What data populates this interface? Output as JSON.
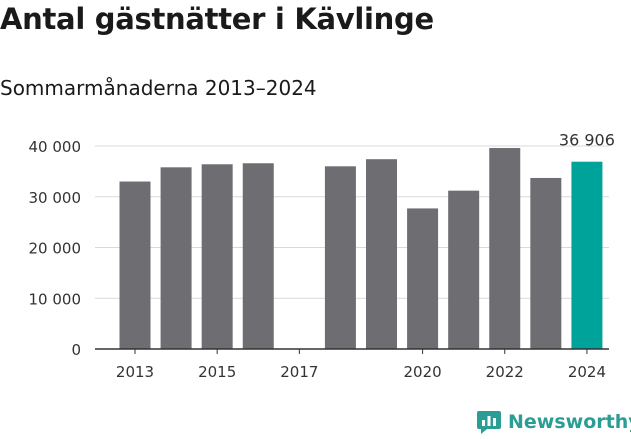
{
  "title": "Antal gästnätter i Kävlinge",
  "subtitle": "Sommarmånaderna 2013–2024",
  "brand": {
    "name": "Newsworthy",
    "icon": "newsworthy-chart-logo-icon"
  },
  "colors": {
    "bar": "#6e6d72",
    "highlight": "#00a399",
    "axis": "#333333",
    "grid": "#d9d9d9",
    "text": "#333333",
    "brand": "#2a9d94"
  },
  "chart_data": {
    "type": "bar",
    "title": "Antal gästnätter i Kävlinge",
    "subtitle": "Sommarmånaderna 2013–2024",
    "xlabel": "",
    "ylabel": "",
    "categories": [
      "2013",
      "2014",
      "2015",
      "2016",
      "2017",
      "2018",
      "2019",
      "2020",
      "2021",
      "2022",
      "2023",
      "2024"
    ],
    "values": [
      33000,
      35800,
      36400,
      36600,
      null,
      36000,
      37400,
      27700,
      31200,
      39600,
      33700,
      36906
    ],
    "highlight_index": 11,
    "data_labels": [
      {
        "index": 11,
        "text": "36 906"
      }
    ],
    "x_tick_labels": [
      "2013",
      "2015",
      "2017",
      "2020",
      "2022",
      "2024"
    ],
    "y_tick_labels": [
      "0",
      "10 000",
      "20 000",
      "30 000",
      "40 000"
    ],
    "y_ticks": [
      0,
      10000,
      20000,
      30000,
      40000
    ],
    "ylim": [
      0,
      40000
    ],
    "grid": true,
    "legend": "none"
  }
}
